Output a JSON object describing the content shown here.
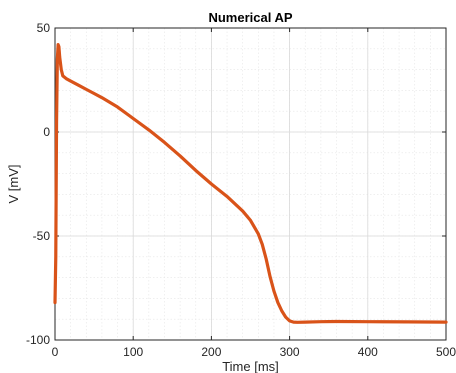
{
  "chart_data": {
    "type": "line",
    "title": "Numerical AP",
    "xlabel": "Time [ms]",
    "ylabel": "V [mV]",
    "xlim": [
      0,
      500
    ],
    "ylim": [
      -100,
      50
    ],
    "x_ticks": [
      0,
      100,
      200,
      300,
      400,
      500
    ],
    "y_ticks": [
      -100,
      -50,
      0,
      50
    ],
    "x_tick_labels": [
      "0",
      "100",
      "200",
      "300",
      "400",
      "500"
    ],
    "y_tick_labels": [
      "-100",
      "-50",
      "0",
      "50"
    ],
    "grid": true,
    "minor_grid": true,
    "series": [
      {
        "color": "#D95319",
        "x": [
          0,
          1,
          2,
          3,
          4,
          5,
          6,
          8,
          10,
          15,
          20,
          30,
          40,
          50,
          60,
          80,
          100,
          120,
          140,
          160,
          180,
          200,
          220,
          240,
          250,
          260,
          265,
          270,
          275,
          280,
          285,
          290,
          295,
          300,
          305,
          310,
          320,
          340,
          360,
          400,
          450,
          500
        ],
        "y": [
          -82,
          -60,
          5,
          35,
          42,
          41,
          36,
          30,
          27,
          25.5,
          24.5,
          22.5,
          20.5,
          18.5,
          16.5,
          12,
          6.5,
          1,
          -5,
          -11.5,
          -18.5,
          -25,
          -31,
          -38,
          -42.5,
          -49,
          -54,
          -61,
          -69.5,
          -76.5,
          -82,
          -86,
          -89,
          -90.8,
          -91.4,
          -91.5,
          -91.4,
          -91.2,
          -91.1,
          -91.2,
          -91.3,
          -91.4
        ]
      }
    ]
  }
}
